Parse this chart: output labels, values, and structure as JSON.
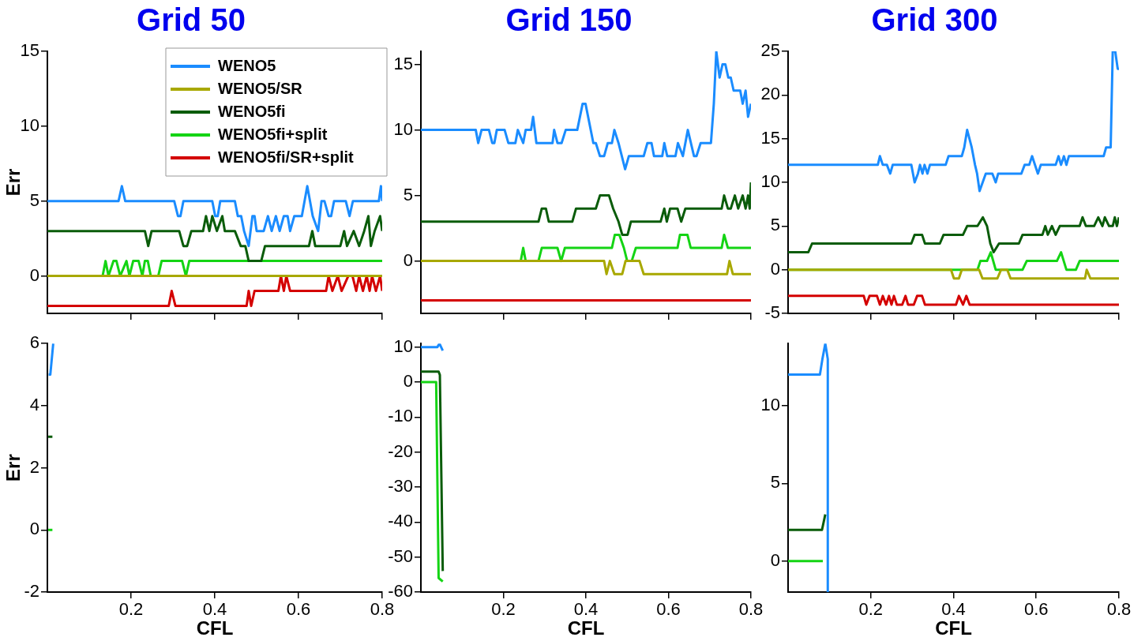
{
  "chart_data": [
    {
      "type": "line",
      "title": "Grid 50",
      "ylabel": "Err",
      "xlim": [
        0,
        0.8
      ],
      "xticks": [
        0.2,
        0.4,
        0.6,
        0.8
      ],
      "ylim": [
        -2.5,
        15
      ],
      "yticks": [
        0,
        5,
        10,
        15
      ],
      "tick_labels": "y",
      "legend": "top right",
      "series": [
        {
          "name": "WENO5",
          "color": "#1a8cff",
          "x": [
            0,
            0.17,
            0.178,
            0.186,
            0.303,
            0.312,
            0.318,
            0.325,
            0.394,
            0.401,
            0.407,
            0.413,
            0.448,
            0.455,
            0.463,
            0.47,
            0.481,
            0.49,
            0.495,
            0.5,
            0.517,
            0.527,
            0.536,
            0.546,
            0.555,
            0.565,
            0.574,
            0.58,
            0.59,
            0.608,
            0.621,
            0.634,
            0.647,
            0.655,
            0.662,
            0.672,
            0.678,
            0.685,
            0.713,
            0.722,
            0.73,
            0.792,
            0.797,
            0.8
          ],
          "values": [
            5,
            5,
            6,
            5,
            5,
            4,
            4,
            5,
            5,
            4,
            4,
            5,
            5,
            4,
            4,
            3,
            2,
            4,
            4,
            3,
            3,
            4,
            3,
            4,
            3,
            4,
            4,
            3,
            4,
            4,
            6,
            4,
            3,
            5,
            5,
            4,
            4,
            5,
            5,
            4,
            5,
            5,
            6,
            5
          ]
        },
        {
          "name": "WENO5/SR",
          "color": "#a8a800",
          "x": [
            0,
            0.8
          ],
          "values": [
            0,
            0
          ]
        },
        {
          "name": "WENO5fi",
          "color": "#0a5c0a",
          "x": [
            0,
            0.233,
            0.241,
            0.249,
            0.315,
            0.325,
            0.334,
            0.344,
            0.372,
            0.379,
            0.387,
            0.394,
            0.405,
            0.418,
            0.424,
            0.448,
            0.462,
            0.473,
            0.481,
            0.511,
            0.52,
            0.625,
            0.633,
            0.64,
            0.7,
            0.709,
            0.716,
            0.732,
            0.745,
            0.757,
            0.767,
            0.773,
            0.782,
            0.795,
            0.8
          ],
          "values": [
            3,
            3,
            2,
            3,
            3,
            2,
            2,
            3,
            3,
            4,
            3,
            4,
            3,
            4,
            3,
            3,
            2,
            2,
            1,
            1,
            2,
            2,
            3,
            2,
            2,
            3,
            2,
            3,
            2,
            3,
            4,
            2,
            3,
            4,
            3
          ]
        },
        {
          "name": "WENO5fi+split",
          "color": "#14d414",
          "x": [
            0,
            0.132,
            0.139,
            0.146,
            0.158,
            0.165,
            0.174,
            0.189,
            0.196,
            0.205,
            0.218,
            0.227,
            0.233,
            0.24,
            0.247,
            0.265,
            0.273,
            0.322,
            0.331,
            0.339,
            0.8
          ],
          "values": [
            0,
            0,
            1,
            0,
            1,
            1,
            0,
            1,
            0,
            1,
            1,
            0,
            1,
            1,
            0,
            0,
            1,
            1,
            0,
            1,
            1
          ]
        },
        {
          "name": "WENO5fi/SR+split",
          "color": "#d40000",
          "x": [
            0,
            0.29,
            0.297,
            0.306,
            0.476,
            0.481,
            0.487,
            0.495,
            0.552,
            0.558,
            0.565,
            0.571,
            0.58,
            0.666,
            0.672,
            0.681,
            0.694,
            0.703,
            0.719,
            0.729,
            0.738,
            0.745,
            0.754,
            0.763,
            0.77,
            0.776,
            0.785,
            0.795,
            0.8
          ],
          "values": [
            -2,
            -2,
            -1,
            -2,
            -2,
            -1,
            -2,
            -1,
            -1,
            0,
            -1,
            0,
            -1,
            -1,
            0,
            -1,
            0,
            -1,
            0,
            0,
            -1,
            0,
            -1,
            0,
            -1,
            0,
            -1,
            0,
            -1
          ]
        }
      ]
    },
    {
      "type": "line",
      "title": "Grid 150",
      "xlim": [
        0,
        0.8
      ],
      "xticks": [
        0.2,
        0.4,
        0.6,
        0.8
      ],
      "ylim": [
        -4,
        16
      ],
      "yticks": [
        0,
        5,
        10,
        15
      ],
      "tick_labels": "y",
      "series": [
        {
          "color": "#1a8cff",
          "x": [
            0,
            0.133,
            0.139,
            0.147,
            0.165,
            0.173,
            0.178,
            0.184,
            0.203,
            0.212,
            0.229,
            0.235,
            0.248,
            0.254,
            0.267,
            0.272,
            0.28,
            0.319,
            0.323,
            0.331,
            0.341,
            0.351,
            0.379,
            0.392,
            0.399,
            0.418,
            0.424,
            0.434,
            0.444,
            0.453,
            0.463,
            0.469,
            0.479,
            0.495,
            0.504,
            0.54,
            0.549,
            0.559,
            0.565,
            0.585,
            0.59,
            0.597,
            0.617,
            0.623,
            0.635,
            0.647,
            0.662,
            0.668,
            0.678,
            0.703,
            0.71,
            0.716,
            0.724,
            0.731,
            0.738,
            0.745,
            0.751,
            0.758,
            0.774,
            0.78,
            0.787,
            0.793,
            0.8
          ],
          "values": [
            10,
            10,
            9,
            10,
            10,
            9,
            9,
            10,
            10,
            9,
            9,
            10,
            9,
            10,
            10,
            11,
            9,
            9,
            10,
            9,
            9,
            10,
            10,
            12,
            12,
            9,
            9,
            8,
            8,
            9,
            9,
            10,
            9,
            7,
            8,
            8,
            9,
            9,
            8,
            8,
            9,
            8,
            8,
            9,
            8,
            10,
            8,
            8,
            9,
            9,
            12,
            16,
            14,
            15,
            15,
            14,
            14,
            13,
            13,
            12,
            13,
            11,
            12
          ]
        },
        {
          "color": "#a8a800",
          "x": [
            0,
            0.444,
            0.45,
            0.458,
            0.469,
            0.488,
            0.496,
            0.53,
            0.54,
            0.742,
            0.748,
            0.756,
            0.8
          ],
          "values": [
            0,
            0,
            -1,
            0,
            -1,
            -1,
            0,
            0,
            -1,
            -1,
            0,
            -1,
            -1
          ]
        },
        {
          "color": "#0a5c0a",
          "x": [
            0,
            0.285,
            0.293,
            0.303,
            0.31,
            0.367,
            0.376,
            0.424,
            0.434,
            0.456,
            0.466,
            0.479,
            0.488,
            0.501,
            0.509,
            0.581,
            0.59,
            0.596,
            0.604,
            0.622,
            0.631,
            0.641,
            0.729,
            0.735,
            0.744,
            0.751,
            0.761,
            0.769,
            0.78,
            0.787,
            0.793,
            0.797,
            0.8
          ],
          "values": [
            3,
            3,
            4,
            4,
            3,
            3,
            4,
            4,
            5,
            5,
            4,
            3,
            2,
            2,
            3,
            3,
            4,
            3,
            4,
            4,
            3,
            4,
            4,
            5,
            4,
            4,
            5,
            4,
            5,
            4,
            5,
            4,
            6
          ]
        },
        {
          "color": "#14d414",
          "x": [
            0,
            0.242,
            0.248,
            0.254,
            0.285,
            0.293,
            0.331,
            0.34,
            0.349,
            0.463,
            0.47,
            0.481,
            0.492,
            0.5,
            0.511,
            0.521,
            0.622,
            0.628,
            0.646,
            0.654,
            0.729,
            0.735,
            0.744,
            0.8
          ],
          "values": [
            0,
            0,
            1,
            0,
            0,
            1,
            1,
            0,
            1,
            1,
            2,
            2,
            1,
            0,
            0,
            1,
            1,
            2,
            2,
            1,
            1,
            2,
            1,
            1
          ]
        },
        {
          "color": "#d40000",
          "x": [
            0,
            0.8
          ],
          "values": [
            -3,
            -3
          ]
        }
      ]
    },
    {
      "type": "line",
      "title": "Grid 300",
      "xlim": [
        0,
        0.8
      ],
      "xticks": [
        0.2,
        0.4,
        0.6,
        0.8
      ],
      "ylim": [
        -5,
        25
      ],
      "yticks": [
        -5,
        0,
        5,
        10,
        15,
        20,
        25
      ],
      "tick_labels": "y",
      "series": [
        {
          "color": "#1a8cff",
          "x": [
            0,
            0.217,
            0.222,
            0.229,
            0.239,
            0.247,
            0.253,
            0.298,
            0.306,
            0.314,
            0.319,
            0.325,
            0.33,
            0.337,
            0.343,
            0.381,
            0.388,
            0.42,
            0.426,
            0.433,
            0.444,
            0.452,
            0.457,
            0.463,
            0.478,
            0.494,
            0.502,
            0.508,
            0.564,
            0.572,
            0.583,
            0.59,
            0.604,
            0.611,
            0.647,
            0.654,
            0.66,
            0.667,
            0.673,
            0.679,
            0.763,
            0.769,
            0.78,
            0.785,
            0.791,
            0.797,
            0.8
          ],
          "values": [
            12,
            12,
            13,
            12,
            12,
            11,
            12,
            12,
            10,
            11,
            12,
            11,
            12,
            11,
            12,
            12,
            13,
            13,
            14,
            16,
            14,
            12,
            11,
            9,
            11,
            11,
            10,
            11,
            11,
            12,
            12,
            13,
            11,
            12,
            12,
            13,
            12,
            13,
            12,
            13,
            13,
            14,
            14,
            25,
            25,
            23,
            23
          ]
        },
        {
          "color": "#a8a800",
          "x": [
            0,
            0.394,
            0.401,
            0.413,
            0.42,
            0.462,
            0.47,
            0.506,
            0.515,
            0.53,
            0.538,
            0.718,
            0.722,
            0.731,
            0.8
          ],
          "values": [
            0,
            0,
            -1,
            -1,
            0,
            0,
            -1,
            -1,
            0,
            0,
            -1,
            -1,
            0,
            -1,
            -1
          ]
        },
        {
          "color": "#0a5c0a",
          "x": [
            0,
            0.049,
            0.058,
            0.298,
            0.306,
            0.324,
            0.331,
            0.367,
            0.376,
            0.423,
            0.433,
            0.458,
            0.471,
            0.481,
            0.489,
            0.497,
            0.51,
            0.558,
            0.567,
            0.615,
            0.622,
            0.628,
            0.638,
            0.647,
            0.657,
            0.705,
            0.712,
            0.72,
            0.74,
            0.75,
            0.76,
            0.766,
            0.776,
            0.785,
            0.79,
            0.795,
            0.8
          ],
          "values": [
            2,
            2,
            3,
            3,
            4,
            4,
            3,
            3,
            4,
            4,
            5,
            5,
            6,
            5,
            3,
            2,
            3,
            3,
            4,
            4,
            5,
            4,
            5,
            4,
            5,
            5,
            6,
            5,
            5,
            6,
            5,
            6,
            5,
            5,
            6,
            5,
            6
          ]
        },
        {
          "color": "#14d414",
          "x": [
            0,
            0.458,
            0.465,
            0.481,
            0.49,
            0.502,
            0.567,
            0.577,
            0.65,
            0.66,
            0.673,
            0.696,
            0.705,
            0.8
          ],
          "values": [
            0,
            0,
            1,
            1,
            2,
            0,
            0,
            1,
            1,
            2,
            0,
            0,
            1,
            1
          ]
        },
        {
          "color": "#d40000",
          "x": [
            0,
            0.183,
            0.189,
            0.197,
            0.215,
            0.222,
            0.229,
            0.237,
            0.244,
            0.25,
            0.256,
            0.263,
            0.276,
            0.284,
            0.29,
            0.304,
            0.312,
            0.324,
            0.331,
            0.406,
            0.413,
            0.423,
            0.431,
            0.439,
            0.8
          ],
          "values": [
            -3,
            -3,
            -4,
            -3,
            -3,
            -4,
            -3,
            -4,
            -3,
            -4,
            -3,
            -4,
            -4,
            -3,
            -4,
            -4,
            -3,
            -3,
            -4,
            -4,
            -3,
            -4,
            -3,
            -4,
            -4
          ]
        }
      ]
    },
    {
      "type": "line",
      "xlabel": "CFL",
      "ylabel": "Err",
      "xlim": [
        0,
        0.8
      ],
      "xticks": [
        0.2,
        0.4,
        0.6,
        0.8
      ],
      "ylim": [
        -2,
        6
      ],
      "yticks": [
        -2,
        0,
        2,
        4,
        6
      ],
      "series": [
        {
          "color": "#1a8cff",
          "x": [
            0.003,
            0.007,
            0.014
          ],
          "values": [
            5,
            5,
            6
          ]
        },
        {
          "color": "#0a5c0a",
          "x": [
            0.002,
            0.012
          ],
          "values": [
            3,
            3
          ]
        },
        {
          "color": "#14d414",
          "x": [
            0.002,
            0.012
          ],
          "values": [
            0,
            0
          ]
        }
      ]
    },
    {
      "type": "line",
      "xlabel": "CFL",
      "xlim": [
        0,
        0.8
      ],
      "xticks": [
        0.2,
        0.4,
        0.6,
        0.8
      ],
      "ylim": [
        -60,
        11
      ],
      "yticks": [
        -60,
        -50,
        -40,
        -30,
        -20,
        -10,
        0,
        10
      ],
      "series": [
        {
          "color": "#1a8cff",
          "x": [
            0,
            0.04,
            0.045,
            0.053
          ],
          "values": [
            10,
            10,
            11,
            9
          ]
        },
        {
          "color": "#0a5c0a",
          "x": [
            0,
            0.043,
            0.046,
            0.053
          ],
          "values": [
            3,
            3,
            2,
            -54
          ]
        },
        {
          "color": "#14d414",
          "x": [
            0,
            0.037,
            0.043,
            0.053
          ],
          "values": [
            0,
            0,
            -56,
            -57
          ]
        }
      ]
    },
    {
      "type": "line",
      "xlabel": "CFL",
      "xlim": [
        0,
        0.8
      ],
      "xticks": [
        0.2,
        0.4,
        0.6,
        0.8
      ],
      "ylim": [
        -2,
        14
      ],
      "yticks": [
        0,
        5,
        10
      ],
      "series": [
        {
          "color": "#1a8cff",
          "x": [
            0,
            0.077,
            0.083,
            0.09,
            0.096,
            0.096
          ],
          "values": [
            12,
            12,
            13,
            14,
            13,
            -2
          ]
        },
        {
          "color": "#0a5c0a",
          "x": [
            0,
            0.082,
            0.09
          ],
          "values": [
            2,
            2,
            3
          ]
        },
        {
          "color": "#14d414",
          "x": [
            0,
            0.084
          ],
          "values": [
            0,
            0
          ]
        }
      ]
    }
  ]
}
